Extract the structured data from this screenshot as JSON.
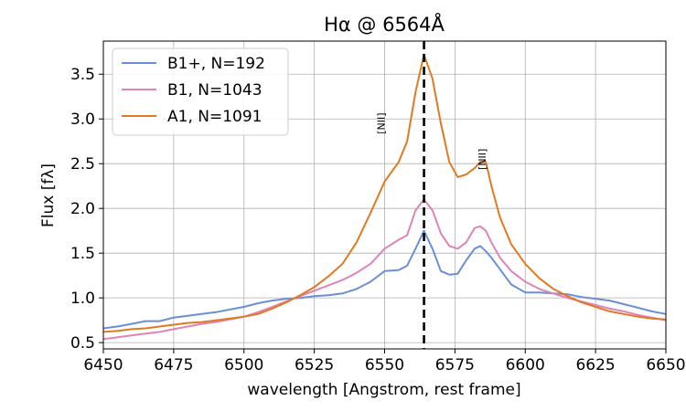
{
  "chart_data": {
    "type": "line",
    "title": "Hα @ 6564Å",
    "xlabel": "wavelength [Angstrom, rest frame]",
    "ylabel": "Flux [fλ]",
    "xlim": [
      6450,
      6650
    ],
    "ylim": [
      0.43,
      3.87
    ],
    "xticks": [
      6450,
      6475,
      6500,
      6525,
      6550,
      6575,
      6600,
      6625,
      6650
    ],
    "yticks": [
      0.5,
      1.0,
      1.5,
      2.0,
      2.5,
      3.0,
      3.5
    ],
    "xtick_labels": [
      "6450",
      "6475",
      "6500",
      "6525",
      "6550",
      "6575",
      "6600",
      "6625",
      "6650"
    ],
    "ytick_labels": [
      "0.5",
      "1.0",
      "1.5",
      "2.0",
      "2.5",
      "3.0",
      "3.5"
    ],
    "grid": true,
    "legend_position": "top-left",
    "vline": {
      "x": 6564,
      "style": "dashed",
      "color": "#000000"
    },
    "annotations": [
      {
        "text": "[NII]",
        "x": 6550,
        "y": 2.95
      },
      {
        "text": "[NII]",
        "x": 6586,
        "y": 2.55
      }
    ],
    "series": [
      {
        "name": "B1+, N=192",
        "color": "#6a8fd6",
        "points": [
          [
            6450,
            0.66
          ],
          [
            6455,
            0.68
          ],
          [
            6460,
            0.71
          ],
          [
            6465,
            0.74
          ],
          [
            6470,
            0.74
          ],
          [
            6475,
            0.78
          ],
          [
            6480,
            0.8
          ],
          [
            6485,
            0.82
          ],
          [
            6490,
            0.84
          ],
          [
            6495,
            0.87
          ],
          [
            6500,
            0.9
          ],
          [
            6505,
            0.94
          ],
          [
            6510,
            0.97
          ],
          [
            6515,
            0.99
          ],
          [
            6520,
            1.0
          ],
          [
            6525,
            1.02
          ],
          [
            6530,
            1.03
          ],
          [
            6535,
            1.05
          ],
          [
            6540,
            1.1
          ],
          [
            6545,
            1.18
          ],
          [
            6550,
            1.3
          ],
          [
            6555,
            1.31
          ],
          [
            6558,
            1.36
          ],
          [
            6561,
            1.55
          ],
          [
            6564,
            1.75
          ],
          [
            6567,
            1.55
          ],
          [
            6570,
            1.3
          ],
          [
            6573,
            1.26
          ],
          [
            6576,
            1.27
          ],
          [
            6579,
            1.42
          ],
          [
            6582,
            1.55
          ],
          [
            6584,
            1.58
          ],
          [
            6586,
            1.52
          ],
          [
            6588,
            1.45
          ],
          [
            6591,
            1.32
          ],
          [
            6595,
            1.15
          ],
          [
            6600,
            1.06
          ],
          [
            6605,
            1.06
          ],
          [
            6610,
            1.05
          ],
          [
            6615,
            1.04
          ],
          [
            6620,
            1.01
          ],
          [
            6625,
            0.99
          ],
          [
            6630,
            0.97
          ],
          [
            6635,
            0.93
          ],
          [
            6640,
            0.89
          ],
          [
            6645,
            0.85
          ],
          [
            6650,
            0.82
          ]
        ]
      },
      {
        "name": "B1, N=1043",
        "color": "#e083b8",
        "points": [
          [
            6450,
            0.54
          ],
          [
            6455,
            0.56
          ],
          [
            6460,
            0.58
          ],
          [
            6465,
            0.6
          ],
          [
            6470,
            0.62
          ],
          [
            6475,
            0.65
          ],
          [
            6480,
            0.68
          ],
          [
            6485,
            0.71
          ],
          [
            6490,
            0.73
          ],
          [
            6495,
            0.76
          ],
          [
            6500,
            0.79
          ],
          [
            6505,
            0.84
          ],
          [
            6510,
            0.9
          ],
          [
            6515,
            0.96
          ],
          [
            6520,
            1.02
          ],
          [
            6525,
            1.08
          ],
          [
            6530,
            1.14
          ],
          [
            6535,
            1.2
          ],
          [
            6540,
            1.28
          ],
          [
            6545,
            1.38
          ],
          [
            6550,
            1.55
          ],
          [
            6555,
            1.65
          ],
          [
            6558,
            1.7
          ],
          [
            6561,
            1.98
          ],
          [
            6564,
            2.1
          ],
          [
            6567,
            1.98
          ],
          [
            6570,
            1.72
          ],
          [
            6573,
            1.58
          ],
          [
            6576,
            1.55
          ],
          [
            6579,
            1.62
          ],
          [
            6582,
            1.78
          ],
          [
            6584,
            1.8
          ],
          [
            6586,
            1.75
          ],
          [
            6588,
            1.62
          ],
          [
            6591,
            1.45
          ],
          [
            6595,
            1.3
          ],
          [
            6600,
            1.18
          ],
          [
            6605,
            1.1
          ],
          [
            6610,
            1.05
          ],
          [
            6615,
            1.0
          ],
          [
            6620,
            0.96
          ],
          [
            6625,
            0.92
          ],
          [
            6630,
            0.88
          ],
          [
            6635,
            0.85
          ],
          [
            6640,
            0.81
          ],
          [
            6645,
            0.78
          ],
          [
            6650,
            0.75
          ]
        ]
      },
      {
        "name": "A1, N=1091",
        "color": "#e07a22",
        "points": [
          [
            6450,
            0.62
          ],
          [
            6455,
            0.63
          ],
          [
            6460,
            0.65
          ],
          [
            6465,
            0.66
          ],
          [
            6470,
            0.68
          ],
          [
            6475,
            0.7
          ],
          [
            6480,
            0.72
          ],
          [
            6485,
            0.73
          ],
          [
            6490,
            0.75
          ],
          [
            6495,
            0.77
          ],
          [
            6500,
            0.79
          ],
          [
            6505,
            0.82
          ],
          [
            6510,
            0.88
          ],
          [
            6515,
            0.95
          ],
          [
            6520,
            1.03
          ],
          [
            6525,
            1.12
          ],
          [
            6530,
            1.24
          ],
          [
            6535,
            1.38
          ],
          [
            6540,
            1.62
          ],
          [
            6545,
            1.95
          ],
          [
            6550,
            2.3
          ],
          [
            6555,
            2.52
          ],
          [
            6558,
            2.75
          ],
          [
            6561,
            3.3
          ],
          [
            6564,
            3.72
          ],
          [
            6567,
            3.45
          ],
          [
            6570,
            2.95
          ],
          [
            6573,
            2.52
          ],
          [
            6576,
            2.35
          ],
          [
            6579,
            2.38
          ],
          [
            6582,
            2.45
          ],
          [
            6584,
            2.52
          ],
          [
            6586,
            2.52
          ],
          [
            6588,
            2.25
          ],
          [
            6591,
            1.9
          ],
          [
            6595,
            1.6
          ],
          [
            6600,
            1.38
          ],
          [
            6605,
            1.22
          ],
          [
            6610,
            1.1
          ],
          [
            6615,
            1.02
          ],
          [
            6620,
            0.95
          ],
          [
            6625,
            0.9
          ],
          [
            6630,
            0.85
          ],
          [
            6635,
            0.82
          ],
          [
            6640,
            0.79
          ],
          [
            6645,
            0.77
          ],
          [
            6650,
            0.76
          ]
        ]
      }
    ]
  }
}
